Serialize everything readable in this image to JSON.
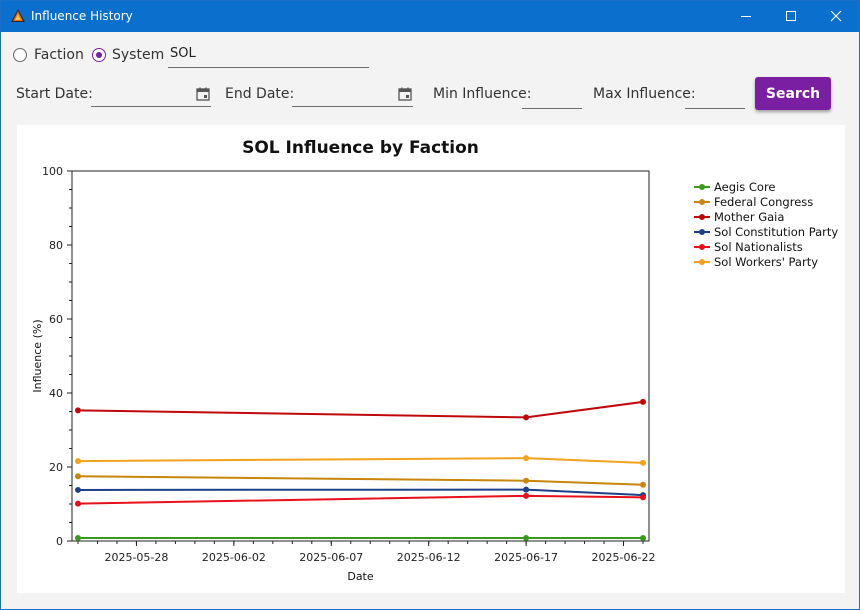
{
  "window": {
    "title": "Influence History",
    "app_icon": "app-pyramid-icon"
  },
  "controls": {
    "minimize": "minimize-icon",
    "maximize": "maximize-icon",
    "close": "close-icon"
  },
  "filter": {
    "faction_label": "Faction",
    "system_label": "System",
    "selected": "System",
    "system_value": "SOL"
  },
  "fields": {
    "start_date_label": "Start Date:",
    "start_date_value": "",
    "end_date_label": "End Date:",
    "end_date_value": "",
    "min_influence_label": "Min Influence:",
    "min_influence_value": "",
    "max_influence_label": "Max Influence:",
    "max_influence_value": "",
    "search_label": "Search",
    "accent_color": "#7b1fa2"
  },
  "chart_data": {
    "type": "line",
    "title": "SOL Influence by Faction",
    "xlabel": "Date",
    "ylabel": "Influence (%)",
    "ylim": [
      0,
      100
    ],
    "xlim": [
      "2025-05-25",
      "2025-06-23"
    ],
    "y_ticks": [
      "0",
      "20",
      "40",
      "60",
      "80",
      "100"
    ],
    "x_ticks": [
      "2025-05-28",
      "2025-06-02",
      "2025-06-07",
      "2025-06-12",
      "2025-06-17",
      "2025-06-22"
    ],
    "x": [
      "2025-05-25",
      "2025-06-17",
      "2025-06-23"
    ],
    "legend_position": "right",
    "grid": false,
    "series": [
      {
        "name": "Aegis Core",
        "color": "#3a9a1c",
        "values": [
          0.8,
          0.8,
          0.8
        ]
      },
      {
        "name": "Federal Congress",
        "color": "#c8860a",
        "values": [
          17.5,
          16.3,
          15.2
        ]
      },
      {
        "name": "Mother Gaia",
        "color": "#c0080a",
        "values": [
          35.3,
          33.4,
          37.6
        ]
      },
      {
        "name": "Sol Constitution Party",
        "color": "#1d3f8a",
        "values": [
          13.8,
          13.9,
          12.4
        ]
      },
      {
        "name": "Sol Nationalists",
        "color": "#e8101a",
        "values": [
          10.1,
          12.2,
          11.8
        ]
      },
      {
        "name": "Sol Workers' Party",
        "color": "#f2a31b",
        "values": [
          21.6,
          22.4,
          21.1
        ]
      }
    ]
  }
}
